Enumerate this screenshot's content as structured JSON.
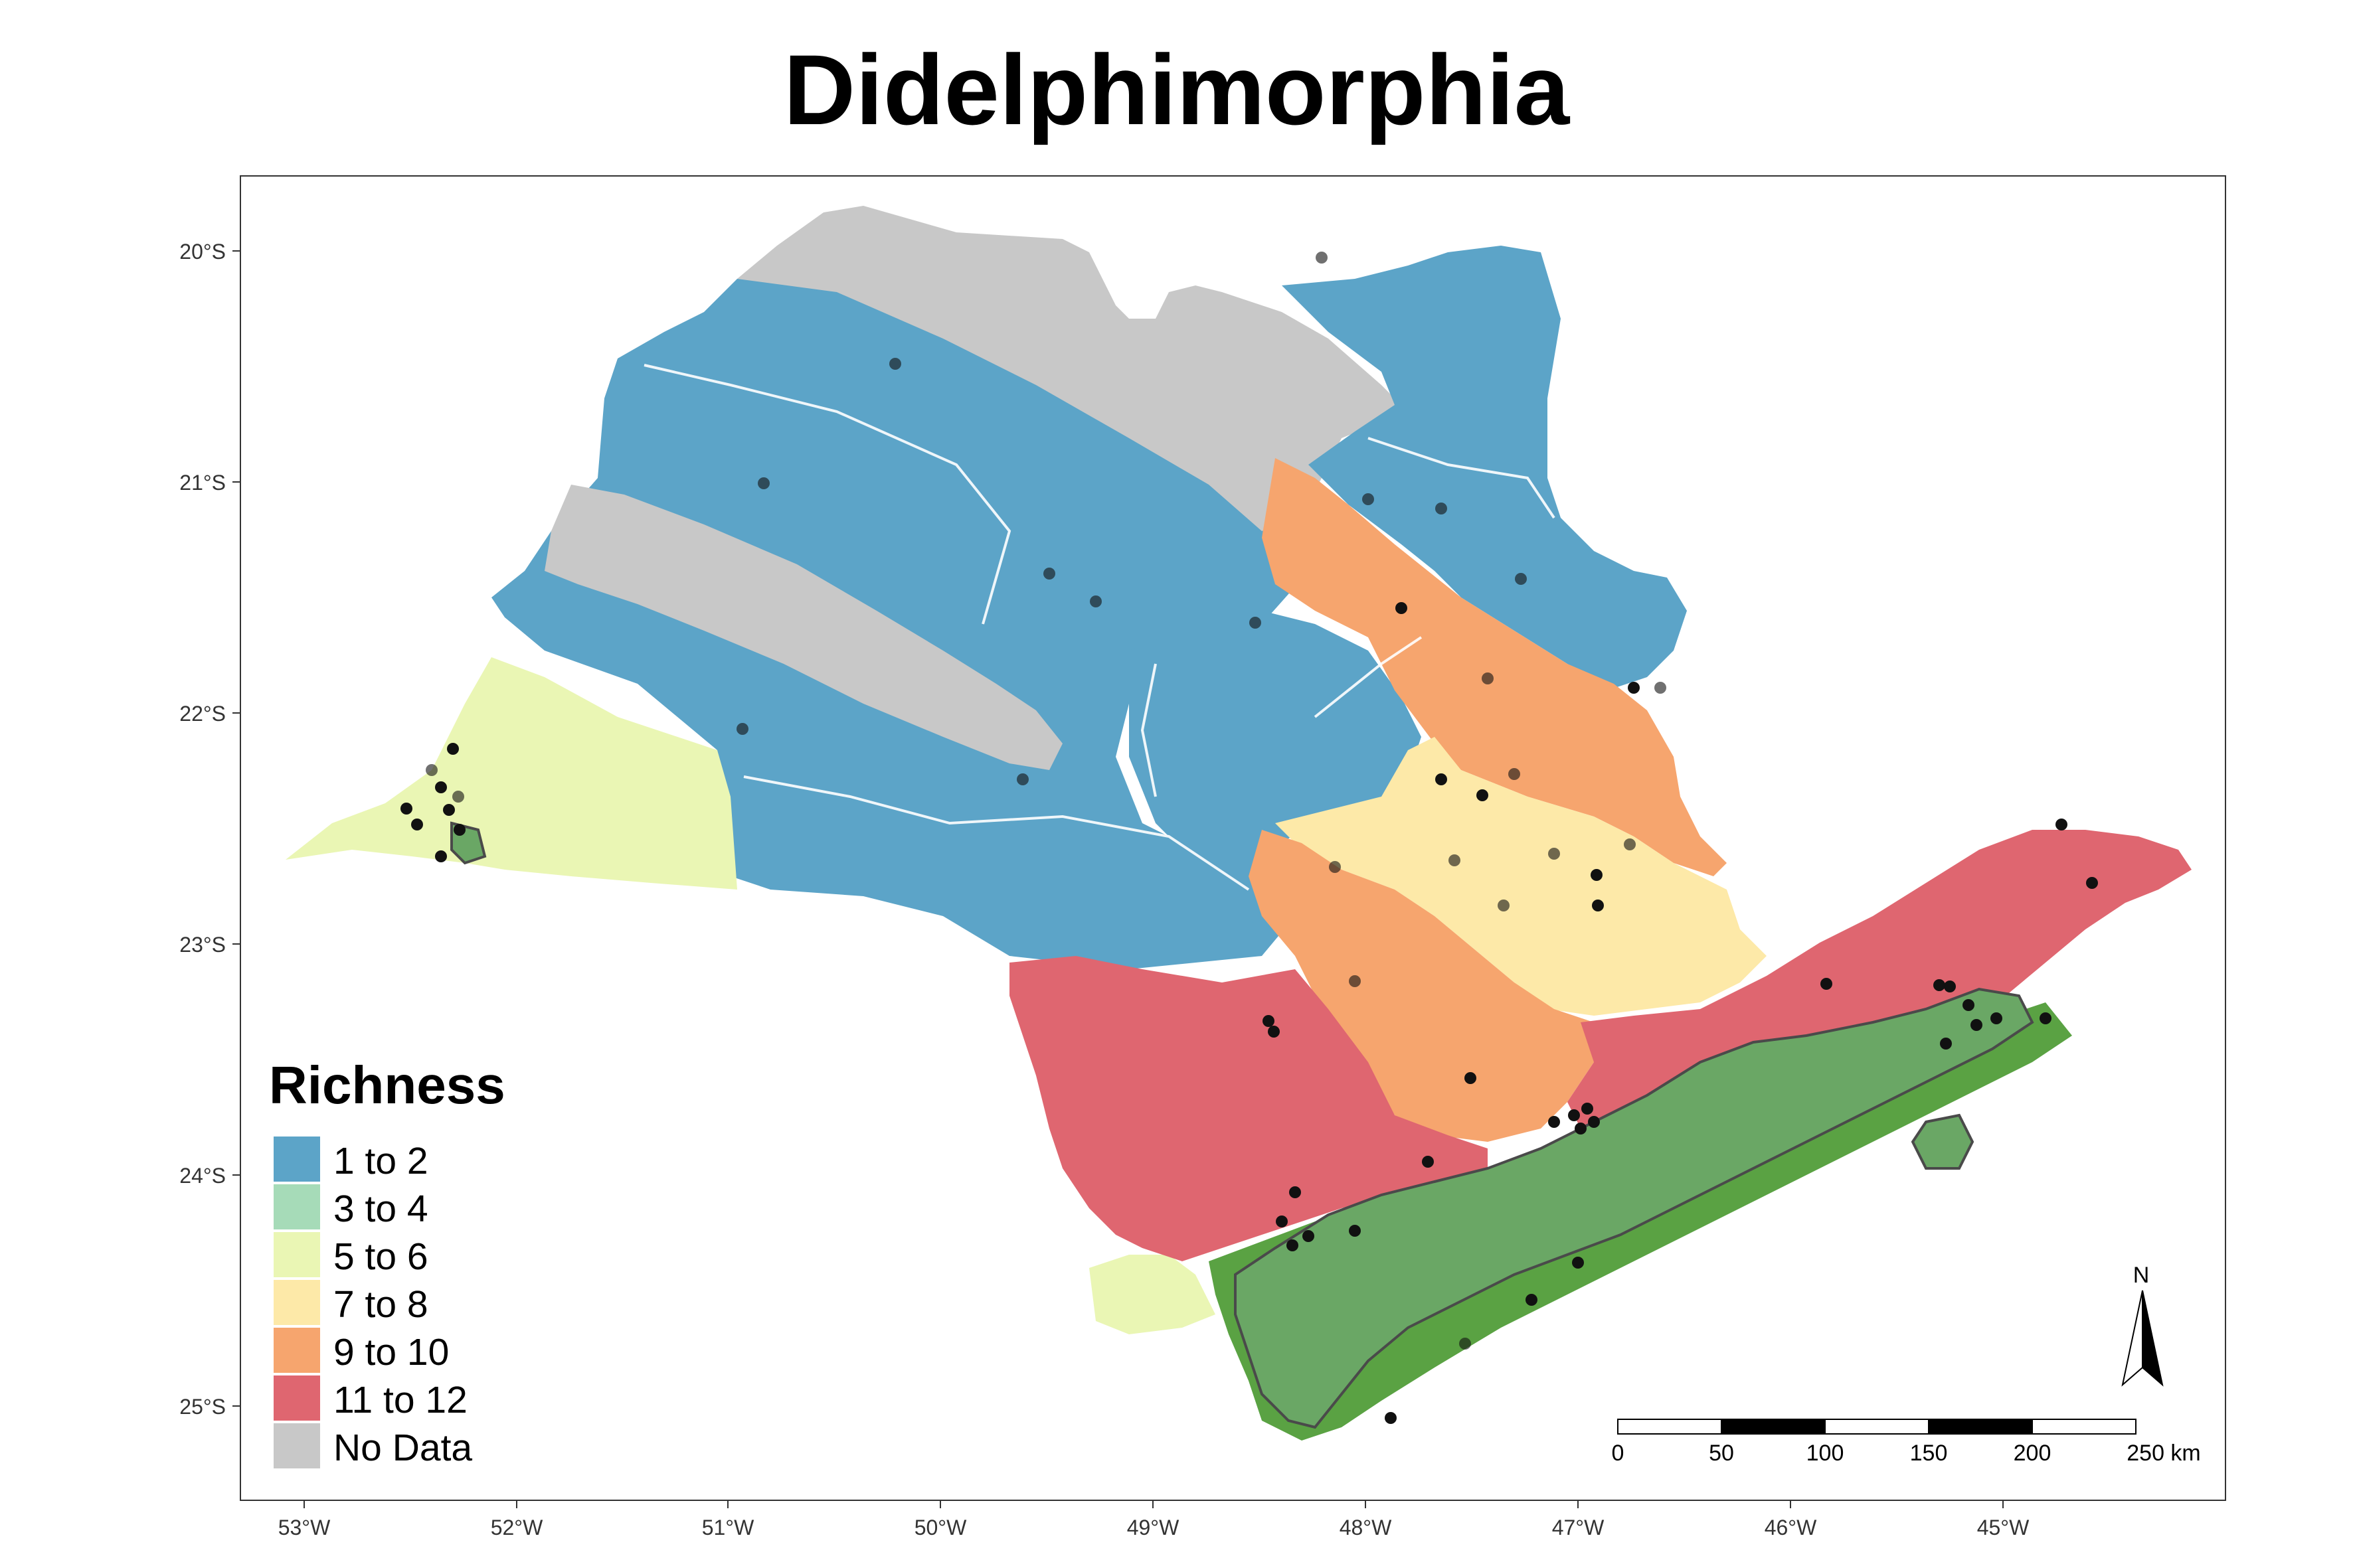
{
  "map": {
    "title": "Didelphimorphia",
    "axes": {
      "lon_labels": [
        "53°W",
        "52°W",
        "51°W",
        "50°W",
        "49°W",
        "48°W",
        "47°W",
        "46°W",
        "45°W"
      ],
      "lat_labels": [
        "20°S",
        "21°S",
        "22°S",
        "23°S",
        "24°S",
        "25°S"
      ]
    },
    "legend": {
      "title": "Richness",
      "items": [
        {
          "label": "1 to 2",
          "color": "#5ca4c8"
        },
        {
          "label": "3 to 4",
          "color": "#a6dbb8"
        },
        {
          "label": "5 to 6",
          "color": "#eaf6b4"
        },
        {
          "label": "7 to 8",
          "color": "#fde9a8"
        },
        {
          "label": "9 to 10",
          "color": "#f6a56e"
        },
        {
          "label": "11 to 12",
          "color": "#df6670"
        },
        {
          "label": "No Data",
          "color": "#c8c8c8"
        }
      ]
    },
    "scale_bar": {
      "labels": [
        "0",
        "50",
        "100",
        "150",
        "200",
        "250 km"
      ]
    },
    "north_arrow": {
      "label": "N"
    },
    "colors": {
      "protected_area": "#6aa765",
      "forest_cover": "#4f9a3a",
      "points": "#111111"
    }
  }
}
